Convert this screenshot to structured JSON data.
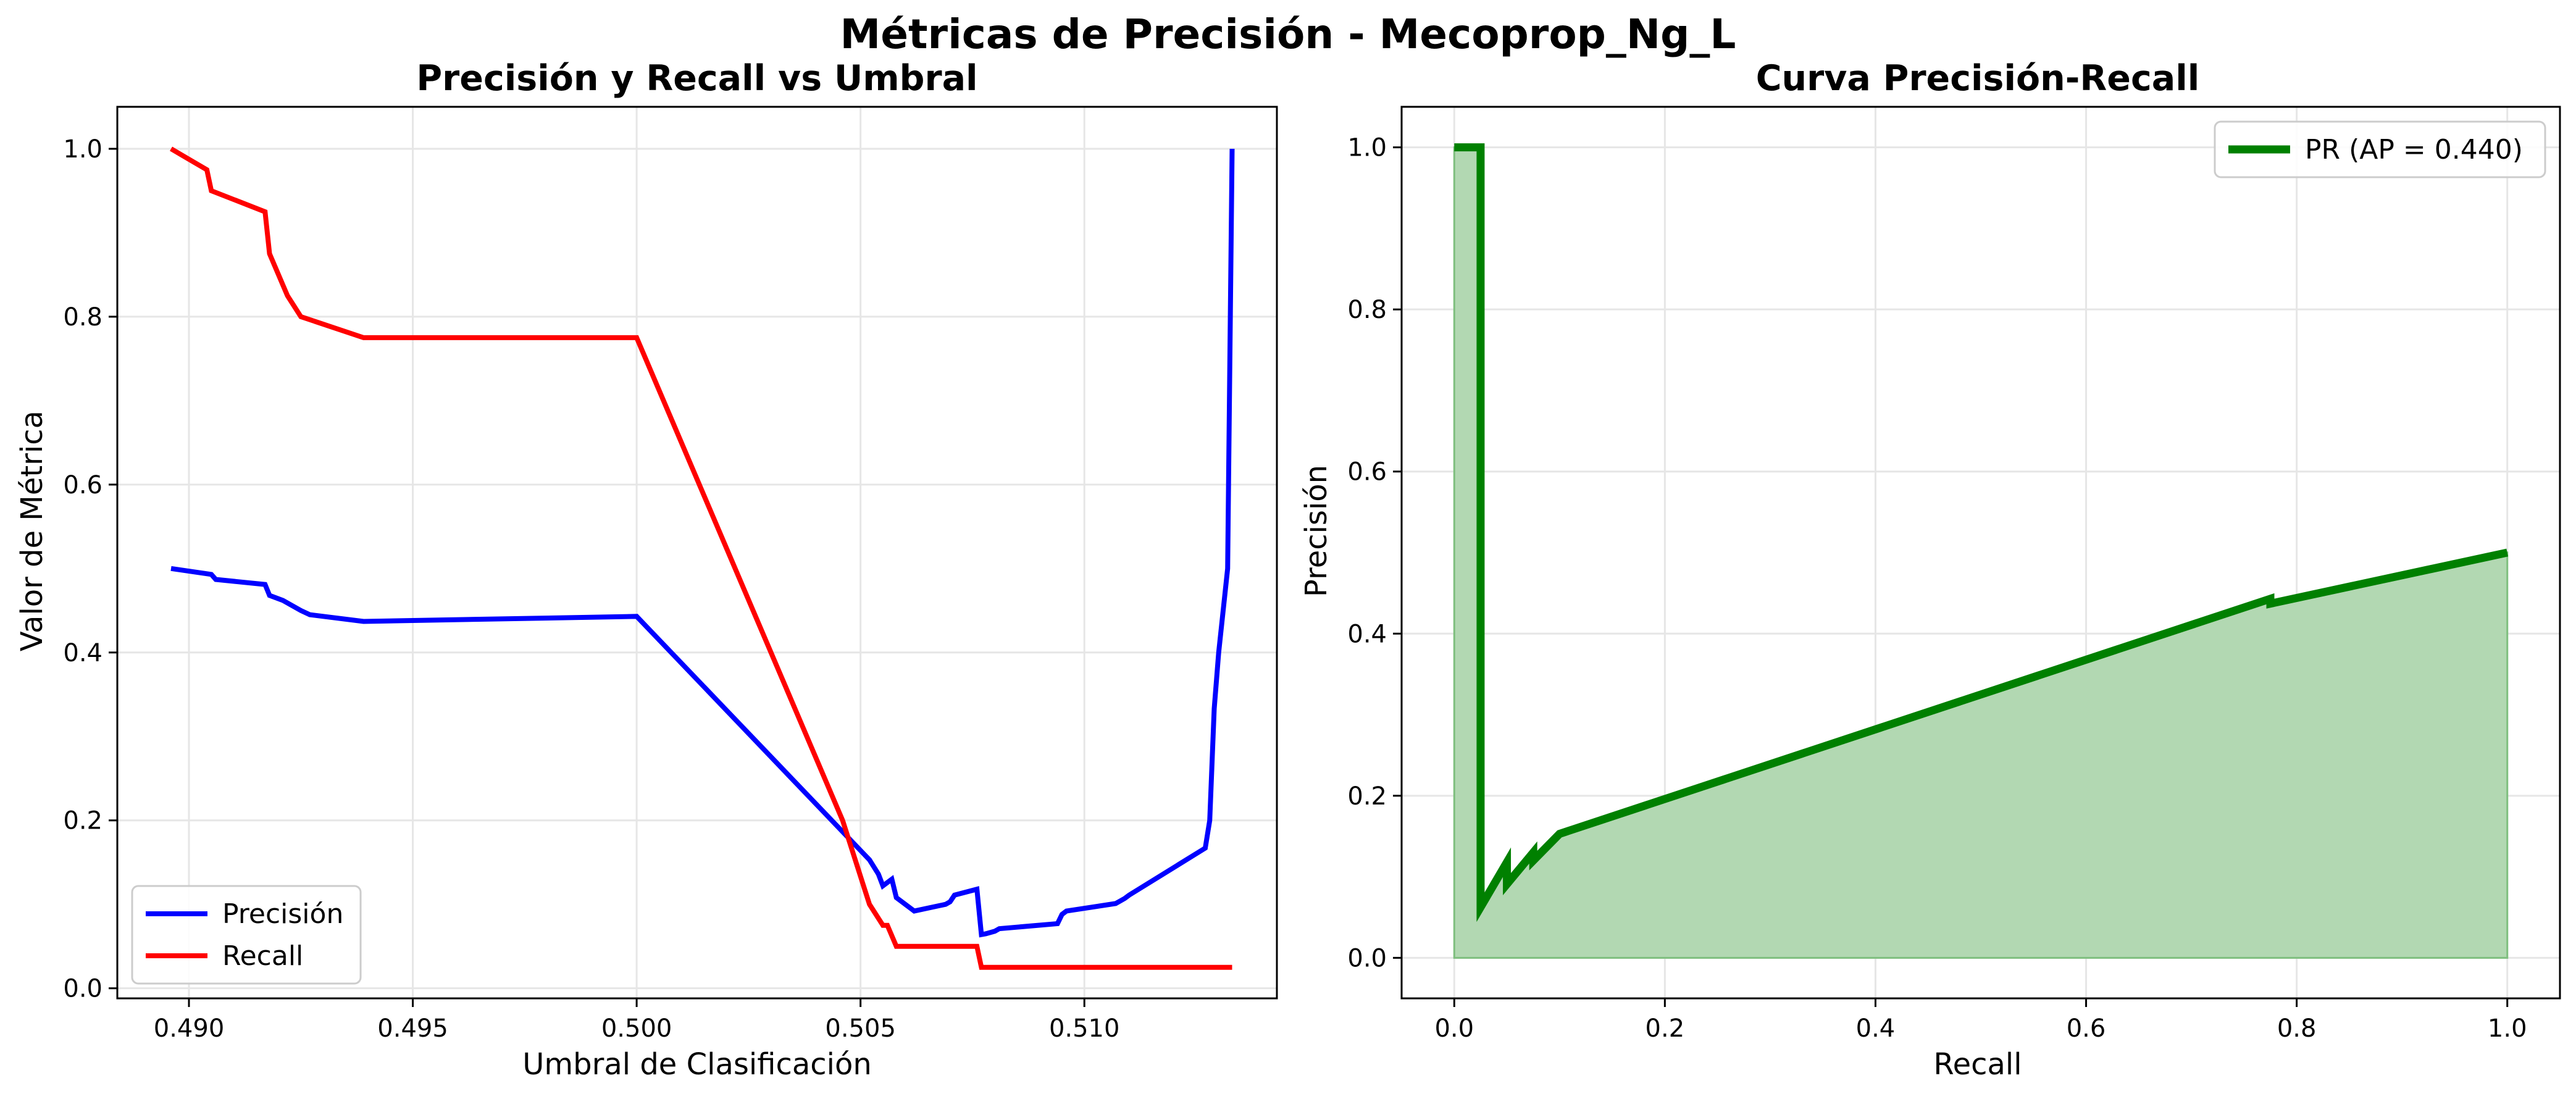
{
  "figure": {
    "suptitle": "Métricas de Precisión - Mecoprop_Ng_L"
  },
  "colors": {
    "precision": "#0000ff",
    "recall": "#ff0000",
    "pr_curve": "#008000",
    "pr_fill": "#b2d8b2",
    "grid": "#e6e6e6",
    "axis": "#000000"
  },
  "chart_data": [
    {
      "type": "line",
      "title": "Precisión y Recall vs Umbral",
      "xlabel": "Umbral de Clasificación",
      "ylabel": "Valor de Métrica",
      "xlim": [
        0.4884,
        0.5143
      ],
      "ylim": [
        -0.012,
        1.05
      ],
      "xticks": [
        "0.490",
        "0.495",
        "0.500",
        "0.505",
        "0.510"
      ],
      "xtick_values": [
        0.49,
        0.495,
        0.5,
        0.505,
        0.51
      ],
      "yticks": [
        "0.0",
        "0.2",
        "0.4",
        "0.6",
        "0.8",
        "1.0"
      ],
      "ytick_values": [
        0.0,
        0.2,
        0.4,
        0.6,
        0.8,
        1.0
      ],
      "grid": true,
      "legend": "lower left",
      "series": [
        {
          "name": "Precisión",
          "color": "#0000ff",
          "x": [
            0.4896,
            0.4905,
            0.4906,
            0.4917,
            0.4918,
            0.4921,
            0.4925,
            0.4927,
            0.4939,
            0.5,
            0.5052,
            0.5054,
            0.5055,
            0.5057,
            0.5058,
            0.5062,
            0.5069,
            0.507,
            0.5071,
            0.5076,
            0.5077,
            0.5078,
            0.508,
            0.5081,
            0.5094,
            0.5095,
            0.5096,
            0.5107,
            0.5109,
            0.511,
            0.5127,
            0.5128,
            0.5129,
            0.513,
            0.5132,
            0.5133
          ],
          "y": [
            0.5,
            0.493,
            0.487,
            0.481,
            0.468,
            0.462,
            0.45,
            0.445,
            0.437,
            0.443,
            0.153,
            0.136,
            0.122,
            0.13,
            0.108,
            0.092,
            0.1,
            0.103,
            0.111,
            0.118,
            0.064,
            0.065,
            0.068,
            0.071,
            0.077,
            0.088,
            0.092,
            0.101,
            0.107,
            0.111,
            0.167,
            0.2,
            0.333,
            0.4,
            0.5,
            1.0
          ]
        },
        {
          "name": "Recall",
          "color": "#ff0000",
          "x": [
            0.4896,
            0.4904,
            0.4905,
            0.4917,
            0.4918,
            0.492,
            0.4922,
            0.4925,
            0.4939,
            0.5,
            0.5046,
            0.5052,
            0.5055,
            0.5056,
            0.5058,
            0.5076,
            0.5077,
            0.5133
          ],
          "y": [
            1.0,
            0.975,
            0.95,
            0.925,
            0.875,
            0.85,
            0.825,
            0.8,
            0.775,
            0.775,
            0.2,
            0.1,
            0.075,
            0.075,
            0.05,
            0.05,
            0.025,
            0.025
          ]
        }
      ]
    },
    {
      "type": "area",
      "title": "Curva Precisión-Recall",
      "xlabel": "Recall",
      "ylabel": "Precisión",
      "xlim": [
        -0.05,
        1.05
      ],
      "ylim": [
        -0.05,
        1.05
      ],
      "xticks": [
        "0.0",
        "0.2",
        "0.4",
        "0.6",
        "0.8",
        "1.0"
      ],
      "xtick_values": [
        0.0,
        0.2,
        0.4,
        0.6,
        0.8,
        1.0
      ],
      "yticks": [
        "0.0",
        "0.2",
        "0.4",
        "0.6",
        "0.8",
        "1.0"
      ],
      "ytick_values": [
        0.0,
        0.2,
        0.4,
        0.6,
        0.8,
        1.0
      ],
      "grid": true,
      "legend": "upper right",
      "series": [
        {
          "name": "PR (AP = 0.440)",
          "color": "#008000",
          "x": [
            0.0,
            0.025,
            0.025,
            0.05,
            0.05,
            0.075,
            0.075,
            0.1,
            0.775,
            0.775,
            0.9,
            1.0
          ],
          "y": [
            1.0,
            1.0,
            0.0625,
            0.118,
            0.0909,
            0.13,
            0.12,
            0.153,
            0.443,
            0.437,
            0.472,
            0.5
          ]
        }
      ]
    }
  ]
}
